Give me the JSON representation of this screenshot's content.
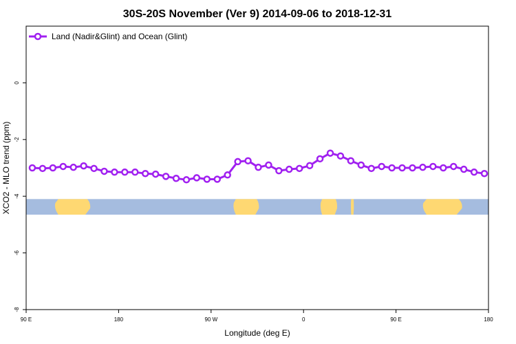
{
  "chart_data": {
    "type": "line",
    "title": "30S-20S November (Ver 9)   2014-09-06 to 2018-12-31",
    "xlabel": "Longitude (deg E)",
    "ylabel": "XCO2 - MLO trend (ppm)",
    "xlim": [
      90,
      540
    ],
    "ylim": [
      -8,
      2
    ],
    "x_ticks": [
      {
        "value": 90,
        "label": "90 E"
      },
      {
        "value": 180,
        "label": "180"
      },
      {
        "value": 270,
        "label": "90 W"
      },
      {
        "value": 360,
        "label": "0"
      },
      {
        "value": 450,
        "label": "90 E"
      },
      {
        "value": 540,
        "label": "180"
      }
    ],
    "y_ticks": [
      {
        "value": 0,
        "label": "0"
      },
      {
        "value": -2,
        "label": "-2"
      },
      {
        "value": -4,
        "label": "-4"
      },
      {
        "value": -6,
        "label": "-6"
      },
      {
        "value": -8,
        "label": "-8"
      }
    ],
    "legend": {
      "position": "top-left",
      "entries": [
        "Land (Nadir&Glint) and Ocean (Glint)"
      ]
    },
    "series": [
      {
        "name": "Land (Nadir&Glint) and Ocean (Glint)",
        "color": "#a020f0",
        "x": [
          96,
          106,
          116,
          126,
          136,
          146,
          156,
          166,
          176,
          186,
          196,
          206,
          216,
          226,
          236,
          246,
          256,
          266,
          276,
          286,
          296,
          306,
          316,
          326,
          336,
          346,
          356,
          366,
          376,
          386,
          396,
          406,
          416,
          426,
          436,
          446,
          456,
          466,
          476,
          486,
          496,
          506,
          516,
          526,
          536
        ],
        "values": [
          -3.0,
          -3.02,
          -3.0,
          -2.95,
          -2.98,
          -2.93,
          -3.02,
          -3.12,
          -3.15,
          -3.15,
          -3.15,
          -3.2,
          -3.22,
          -3.3,
          -3.37,
          -3.42,
          -3.35,
          -3.4,
          -3.4,
          -3.25,
          -2.78,
          -2.75,
          -2.98,
          -2.9,
          -3.1,
          -3.05,
          -3.02,
          -2.92,
          -2.68,
          -2.48,
          -2.58,
          -2.75,
          -2.9,
          -3.02,
          -2.95,
          -3.0,
          -3.0,
          -3.0,
          -2.98,
          -2.95,
          -3.0,
          -2.95,
          -3.05,
          -3.15,
          -3.2
        ]
      }
    ],
    "map_strip": {
      "ocean_color": "#a5bcdf",
      "land_color": "#fed872",
      "y_range": [
        -4.65,
        -4.1
      ],
      "land_spans": [
        [
          117,
          153
        ],
        [
          291,
          317
        ],
        [
          376,
          393
        ],
        [
          406,
          409
        ],
        [
          475,
          515
        ]
      ]
    }
  }
}
